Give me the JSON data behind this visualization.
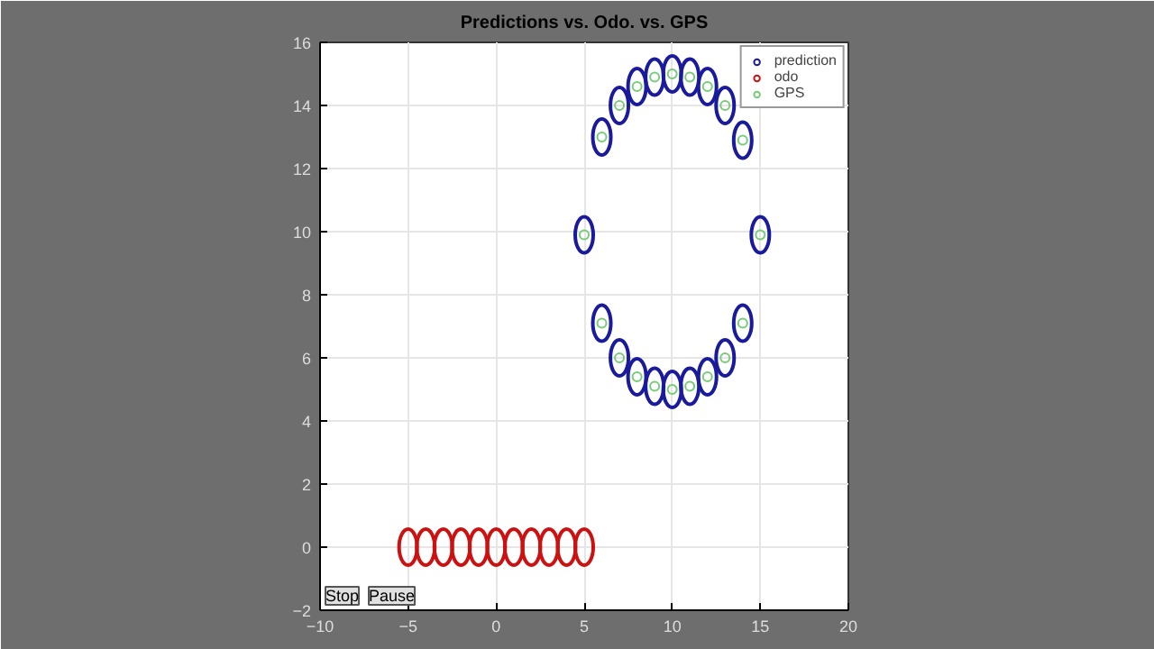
{
  "chart_data": {
    "type": "scatter",
    "title": "Predictions vs. Odo. vs. GPS",
    "xlim": [
      -10,
      20
    ],
    "ylim": [
      -2,
      16
    ],
    "xticks": [
      -10,
      -5,
      0,
      5,
      10,
      15,
      20
    ],
    "yticks": [
      -2,
      0,
      2,
      4,
      6,
      8,
      10,
      12,
      14,
      16
    ],
    "grid": true,
    "legend": "top right",
    "marker": "circle",
    "annotations": [
      "Stop",
      "Pause"
    ],
    "series": [
      {
        "name": "prediction",
        "color": "#1a1a9c",
        "x": [
          5,
          6,
          7,
          8,
          9,
          10,
          11,
          12,
          13,
          14,
          15,
          14,
          13,
          12,
          11,
          10,
          9,
          8,
          7,
          6
        ],
        "values": [
          9.9,
          13,
          14,
          14.6,
          14.9,
          15,
          14.9,
          14.6,
          14,
          12.9,
          9.9,
          7.1,
          6,
          5.4,
          5.1,
          5,
          5.1,
          5.4,
          6,
          7.1
        ]
      },
      {
        "name": "odo",
        "color": "#cc1111",
        "x": [
          -5,
          -4,
          -3,
          -2,
          -1,
          0,
          1,
          2,
          3,
          4,
          5
        ],
        "values": [
          0,
          0,
          0,
          0,
          0,
          0,
          0,
          0,
          0,
          0,
          0
        ]
      },
      {
        "name": "GPS",
        "color": "#77cc77",
        "x": [
          5,
          6,
          7,
          8,
          9,
          10,
          11,
          12,
          13,
          14,
          15,
          14,
          13,
          12,
          11,
          10,
          9,
          8,
          7,
          6
        ],
        "values": [
          9.9,
          13,
          14,
          14.6,
          14.9,
          15,
          14.9,
          14.6,
          14,
          12.9,
          9.9,
          7.1,
          6,
          5.4,
          5.1,
          5,
          5.1,
          5.4,
          6,
          7.1
        ]
      }
    ]
  }
}
